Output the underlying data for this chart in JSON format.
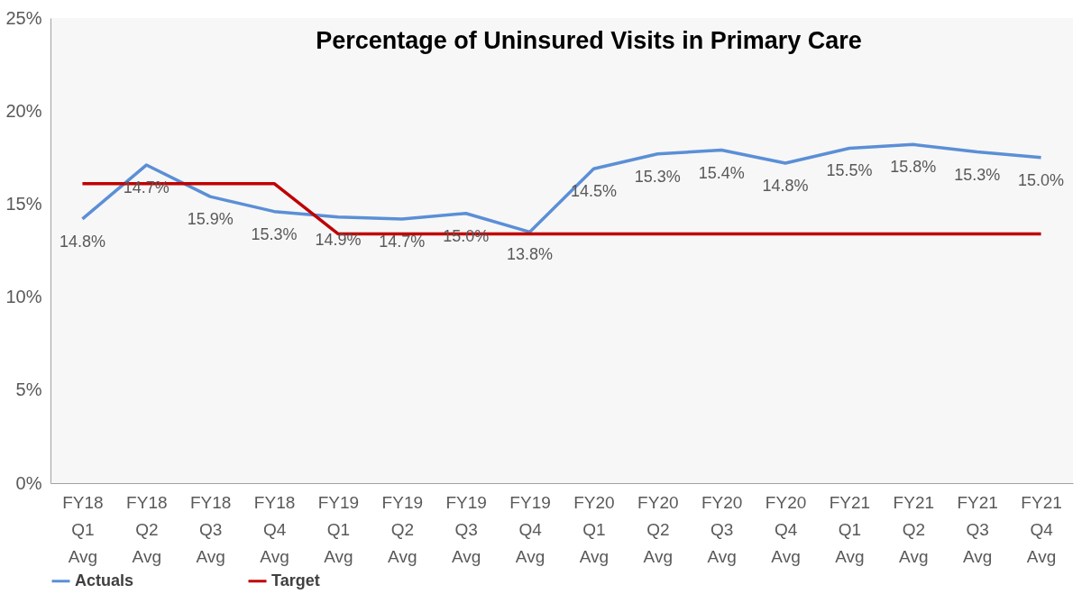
{
  "chart_data": {
    "type": "line",
    "title": "Percentage of Uninsured Visits in Primary Care",
    "categories": [
      "FY18 Q1 Avg",
      "FY18 Q2 Avg",
      "FY18 Q3 Avg",
      "FY18 Q4 Avg",
      "FY19 Q1 Avg",
      "FY19 Q2 Avg",
      "FY19 Q3 Avg",
      "FY19 Q4 Avg",
      "FY20 Q1 Avg",
      "FY20 Q2 Avg",
      "FY20 Q3 Avg",
      "FY20 Q4 Avg",
      "FY21 Q1 Avg",
      "FY21 Q2 Avg",
      "FY21 Q3 Avg",
      "FY21 Q4 Avg"
    ],
    "series": [
      {
        "name": "Actuals",
        "color": "#5b8fd6",
        "values": [
          14.2,
          17.1,
          15.4,
          14.6,
          14.3,
          14.2,
          14.5,
          13.5,
          16.9,
          17.7,
          17.9,
          17.2,
          18.0,
          18.2,
          17.8,
          17.5
        ]
      },
      {
        "name": "Target",
        "color": "#c00000",
        "values": [
          16.1,
          16.1,
          16.1,
          16.1,
          13.4,
          13.4,
          13.4,
          13.4,
          13.4,
          13.4,
          13.4,
          13.4,
          13.4,
          13.4,
          13.4,
          13.4
        ]
      }
    ],
    "annotations": [
      {
        "text": "14.8%",
        "x": "FY18 Q1 Avg",
        "y": 14.2
      },
      {
        "text": "14.7%",
        "x": "FY18 Q2 Avg",
        "y": 17.1
      },
      {
        "text": "15.9%",
        "x": "FY18 Q3 Avg",
        "y": 15.4
      },
      {
        "text": "15.3%",
        "x": "FY18 Q4 Avg",
        "y": 14.6
      },
      {
        "text": "14.9%",
        "x": "FY19 Q1 Avg",
        "y": 14.3
      },
      {
        "text": "14.7%",
        "x": "FY19 Q2 Avg",
        "y": 14.2
      },
      {
        "text": "15.0%",
        "x": "FY19 Q3 Avg",
        "y": 14.5
      },
      {
        "text": "13.8%",
        "x": "FY19 Q4 Avg",
        "y": 13.5
      },
      {
        "text": "14.5%",
        "x": "FY20 Q1 Avg",
        "y": 16.9
      },
      {
        "text": "15.3%",
        "x": "FY20 Q2 Avg",
        "y": 17.7
      },
      {
        "text": "15.4%",
        "x": "FY20 Q3 Avg",
        "y": 17.9
      },
      {
        "text": "14.8%",
        "x": "FY20 Q4 Avg",
        "y": 17.2
      },
      {
        "text": "15.5%",
        "x": "FY21 Q1 Avg",
        "y": 18.0
      },
      {
        "text": "15.8%",
        "x": "FY21 Q2 Avg",
        "y": 18.2
      },
      {
        "text": "15.3%",
        "x": "FY21 Q3 Avg",
        "y": 17.8
      },
      {
        "text": "15.0%",
        "x": "FY21 Q4 Avg",
        "y": 17.5
      }
    ],
    "ylim": [
      0,
      25
    ],
    "yticks": [
      {
        "value": 0,
        "label": "0%"
      },
      {
        "value": 5,
        "label": "5%"
      },
      {
        "value": 10,
        "label": "10%"
      },
      {
        "value": 15,
        "label": "15%"
      },
      {
        "value": 20,
        "label": "20%"
      },
      {
        "value": 25,
        "label": "25%"
      }
    ],
    "grid": false,
    "legend": "bottom",
    "marker": "none",
    "line_style": "solid"
  }
}
